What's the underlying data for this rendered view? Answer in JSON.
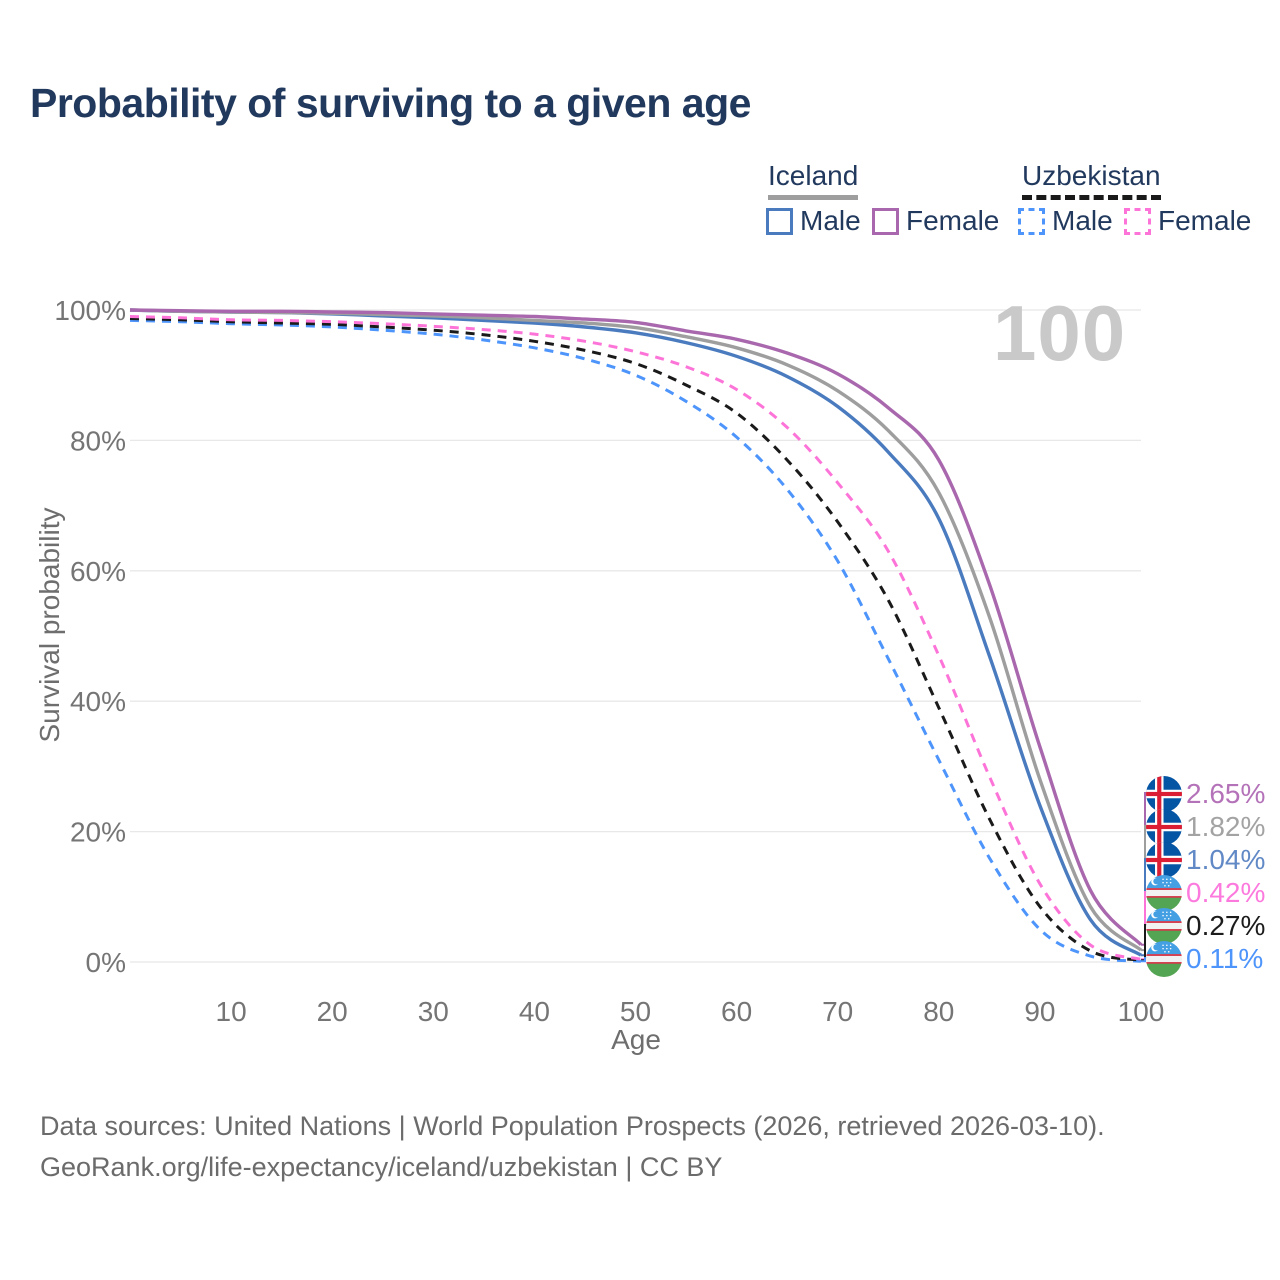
{
  "title": "Probability of surviving to a given age",
  "legend": {
    "groups": [
      {
        "label": "Iceland",
        "line_style": "solid",
        "underline_color": "#9e9e9e",
        "items": [
          {
            "label": "Male",
            "color": "#4a7bbf"
          },
          {
            "label": "Female",
            "color": "#a968ad"
          }
        ]
      },
      {
        "label": "Uzbekistan",
        "line_style": "dashed",
        "underline_color": "#1a1a1a",
        "items": [
          {
            "label": "Male",
            "color": "#4d94fb"
          },
          {
            "label": "Female",
            "color": "#fc74d8"
          }
        ]
      }
    ]
  },
  "chart_data": {
    "type": "line",
    "title": "Probability of surviving to a given age",
    "xlabel": "Age",
    "ylabel": "Survival probability",
    "xlim": [
      0,
      100
    ],
    "ylim": [
      0,
      100
    ],
    "grid": "horizontal",
    "watermark": "100",
    "x_ticks": [
      10,
      20,
      30,
      40,
      50,
      60,
      70,
      80,
      90,
      100
    ],
    "y_ticks": [
      {
        "label": "0%",
        "value": 0
      },
      {
        "label": "20%",
        "value": 20
      },
      {
        "label": "40%",
        "value": 40
      },
      {
        "label": "60%",
        "value": 60
      },
      {
        "label": "80%",
        "value": 80
      },
      {
        "label": "100%",
        "value": 100
      }
    ],
    "ages": [
      0,
      5,
      10,
      15,
      20,
      25,
      30,
      35,
      40,
      45,
      50,
      55,
      60,
      65,
      70,
      75,
      80,
      85,
      90,
      95,
      100
    ],
    "series": [
      {
        "name": "Iceland Female",
        "country": "Iceland",
        "sex": "Female",
        "color": "#a968ad",
        "dash": "solid",
        "end_label": "2.65%",
        "values": [
          100,
          99.9,
          99.8,
          99.8,
          99.7,
          99.6,
          99.4,
          99.2,
          99.0,
          98.6,
          98.1,
          96.8,
          95.5,
          93.4,
          90.2,
          85.0,
          77.0,
          58.0,
          33.0,
          11.0,
          2.65
        ]
      },
      {
        "name": "Iceland Total",
        "country": "Iceland",
        "sex": "Both",
        "color": "#9e9e9e",
        "dash": "solid",
        "end_label": "1.82%",
        "values": [
          100,
          99.8,
          99.7,
          99.6,
          99.5,
          99.3,
          99.1,
          98.8,
          98.4,
          98.0,
          97.3,
          95.9,
          94.2,
          91.6,
          87.6,
          81.5,
          72.0,
          53.0,
          28.0,
          8.5,
          1.82
        ]
      },
      {
        "name": "Iceland Male",
        "country": "Iceland",
        "sex": "Male",
        "color": "#4a7bbf",
        "dash": "solid",
        "end_label": "1.04%",
        "values": [
          100,
          99.8,
          99.7,
          99.6,
          99.4,
          99.1,
          98.8,
          98.4,
          98.0,
          97.4,
          96.5,
          95.0,
          92.9,
          89.8,
          85.2,
          78.2,
          68.0,
          47.0,
          24.0,
          6.5,
          1.04
        ]
      },
      {
        "name": "Uzbekistan Female",
        "country": "Uzbekistan",
        "sex": "Female",
        "color": "#fc74d8",
        "dash": "dashed",
        "end_label": "0.42%",
        "values": [
          99.0,
          98.8,
          98.5,
          98.4,
          98.2,
          97.9,
          97.5,
          97.0,
          96.3,
          95.2,
          93.6,
          91.3,
          87.8,
          82.0,
          73.5,
          63.0,
          47.0,
          28.5,
          12.0,
          2.6,
          0.42
        ]
      },
      {
        "name": "Uzbekistan Total",
        "country": "Uzbekistan",
        "sex": "Both",
        "color": "#1a1a1a",
        "dash": "dashed",
        "end_label": "0.27%",
        "values": [
          98.7,
          98.5,
          98.2,
          98.0,
          97.8,
          97.4,
          96.9,
          96.2,
          95.2,
          93.8,
          91.8,
          88.5,
          84.2,
          77.0,
          67.5,
          55.5,
          39.0,
          22.0,
          8.5,
          1.7,
          0.27
        ]
      },
      {
        "name": "Uzbekistan Male",
        "country": "Uzbekistan",
        "sex": "Male",
        "color": "#4d94fb",
        "dash": "dashed",
        "end_label": "0.11%",
        "values": [
          98.4,
          98.2,
          97.9,
          97.7,
          97.4,
          96.9,
          96.3,
          95.4,
          94.2,
          92.5,
          90.0,
          86.0,
          80.5,
          72.5,
          61.5,
          46.5,
          31.0,
          16.0,
          5.0,
          0.9,
          0.11
        ]
      }
    ]
  },
  "end_labels": [
    {
      "flag": "iceland-flag-icon",
      "value": "2.65%",
      "color": "#b472b8"
    },
    {
      "flag": "iceland-flag-icon",
      "value": "1.82%",
      "color": "#a3a3a3"
    },
    {
      "flag": "iceland-flag-icon",
      "value": "1.04%",
      "color": "#6189c6"
    },
    {
      "flag": "uzbekistan-flag-icon",
      "value": "0.42%",
      "color": "#fc7ade"
    },
    {
      "flag": "uzbekistan-flag-icon",
      "value": "0.27%",
      "color": "#1c1c1c"
    },
    {
      "flag": "uzbekistan-flag-icon",
      "value": "0.11%",
      "color": "#4d94fb"
    }
  ],
  "footer": {
    "line1": "Data sources: United Nations | World Population Prospects (2026, retrieved 2026-03-10).",
    "line2": "GeoRank.org/life-expectancy/iceland/uzbekistan | CC BY"
  }
}
